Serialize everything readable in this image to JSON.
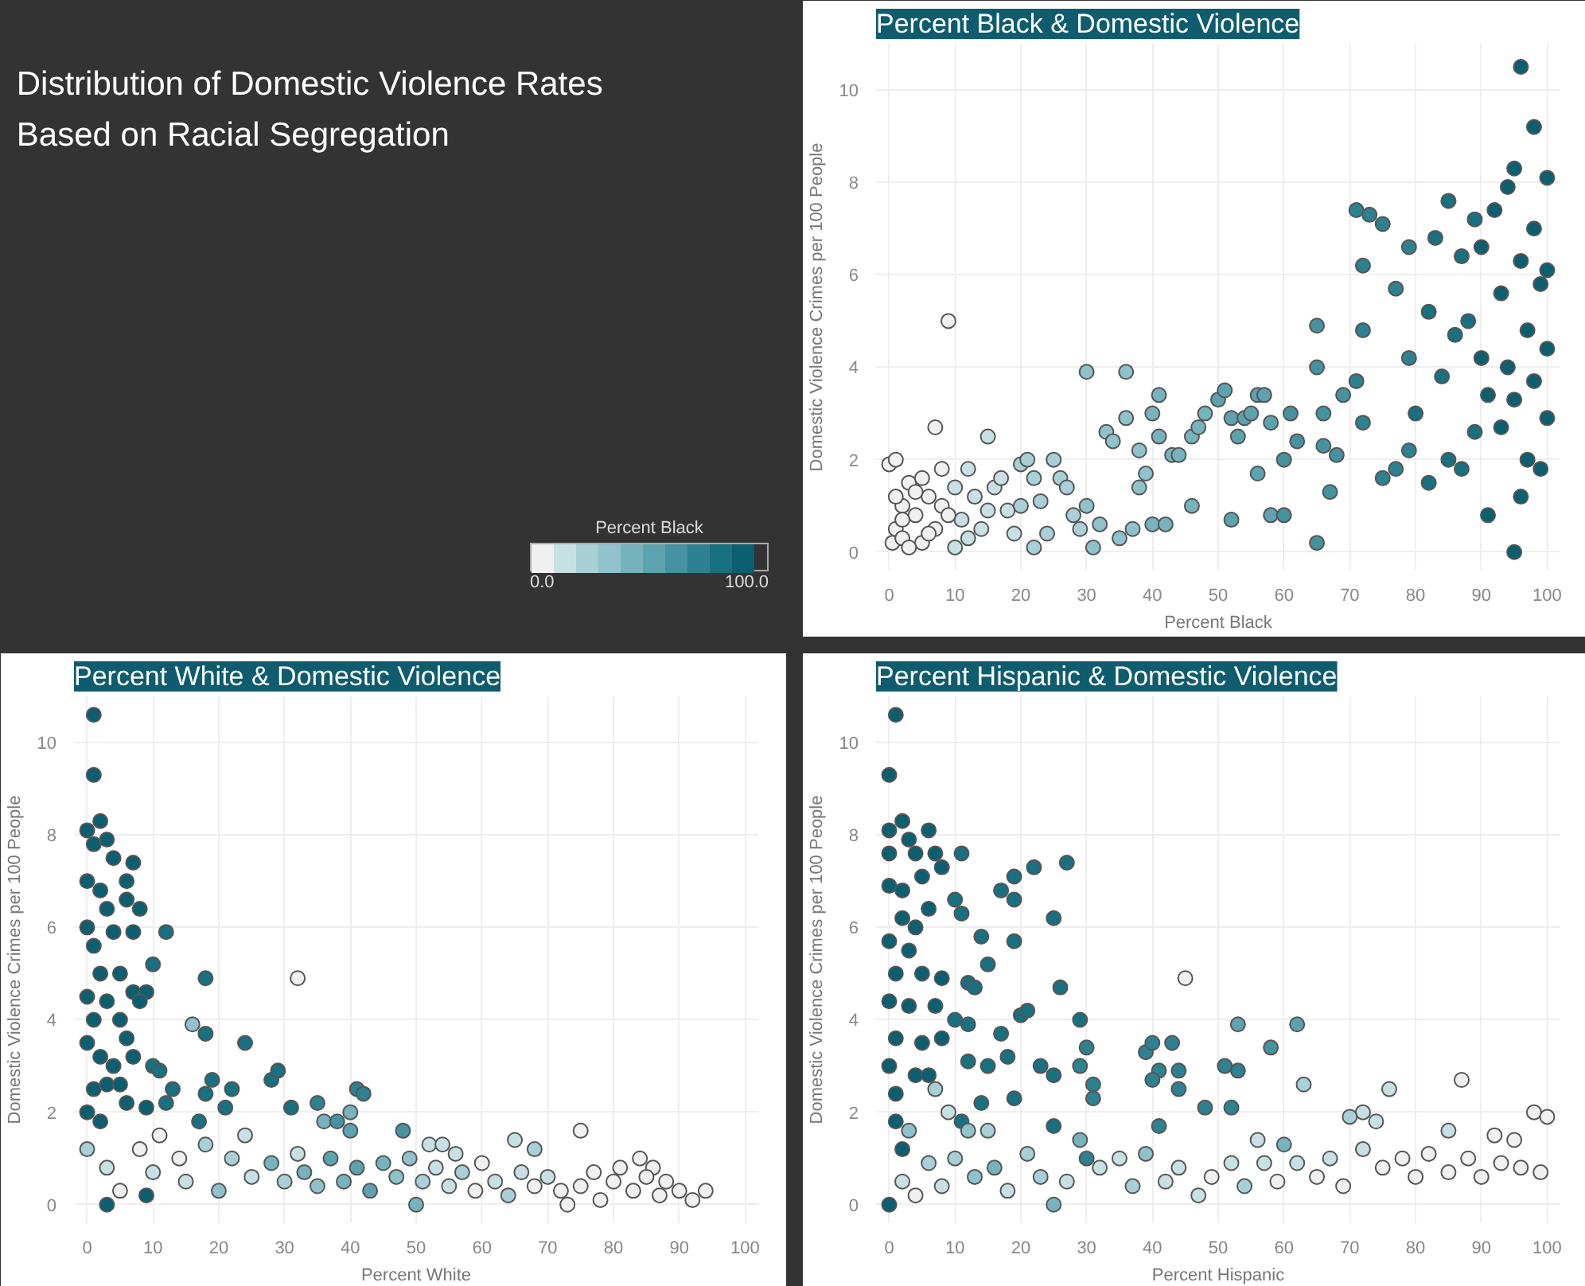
{
  "chart_data": [
    {
      "type": "other",
      "title": "Distribution of Domestic Violence Rates Based on Racial Segregation",
      "colors": [
        "#f0f0f0",
        "#c8e0e4",
        "#a8d0d6",
        "#8fc2ca",
        "#76b3bd",
        "#5da3af",
        "#4592a0",
        "#2e8190",
        "#187080",
        "#0b5f70"
      ],
      "annotations": [
        "Percent Black",
        "0.0",
        "100.0"
      ]
    },
    {
      "type": "scatter",
      "title": "Percent Black & Domestic Violence",
      "xlabel": "Percent Black",
      "ylabel": "Domestic Violence Crimes per 100 People",
      "xlim": [
        -2,
        102
      ],
      "ylim": [
        -0.4,
        11
      ],
      "xticks": [
        0,
        10,
        20,
        30,
        40,
        50,
        60,
        70,
        80,
        90,
        100
      ],
      "yticks": [
        0,
        2,
        4,
        6,
        8,
        10
      ],
      "grid": true,
      "marker": "circle",
      "x": [
        0,
        1,
        0.5,
        1,
        2,
        3,
        2,
        4,
        5,
        5,
        6,
        7,
        7,
        8,
        9,
        8,
        10,
        10,
        11,
        12,
        13,
        14,
        15,
        16,
        17,
        18,
        19,
        20,
        20,
        21,
        22,
        22,
        23,
        24,
        25,
        26,
        27,
        28,
        29,
        30,
        30,
        31,
        32,
        33,
        34,
        35,
        36,
        36,
        37,
        38,
        38,
        39,
        40,
        40,
        41,
        41,
        42,
        43,
        44,
        46,
        46,
        47,
        48,
        50,
        51,
        52,
        52,
        53,
        54,
        55,
        56,
        56,
        57,
        58,
        58,
        60,
        60,
        61,
        62,
        65,
        65,
        65,
        66,
        66,
        67,
        68,
        69,
        71,
        71,
        72,
        72,
        72,
        73,
        75,
        75,
        77,
        77,
        79,
        79,
        79,
        80,
        82,
        82,
        83,
        84,
        85,
        85,
        86,
        87,
        87,
        88,
        89,
        89,
        90,
        90,
        91,
        91,
        92,
        93,
        93,
        94,
        94,
        95,
        95,
        95,
        96,
        96,
        96,
        97,
        97,
        98,
        98,
        98,
        99,
        99,
        100,
        100,
        100,
        100,
        1,
        2,
        3,
        4,
        6,
        9,
        12,
        15
      ],
      "values": [
        1.9,
        2.0,
        0.2,
        0.5,
        1.0,
        1.5,
        0.3,
        0.8,
        1.6,
        0.2,
        1.2,
        0.5,
        2.7,
        1.8,
        5.0,
        1.0,
        0.1,
        1.4,
        0.7,
        1.8,
        1.2,
        0.5,
        2.5,
        1.4,
        1.6,
        0.9,
        0.4,
        1.0,
        1.9,
        2.0,
        1.6,
        0.1,
        1.1,
        0.4,
        2.0,
        1.6,
        1.4,
        0.8,
        0.5,
        3.9,
        1.0,
        0.1,
        0.6,
        2.6,
        2.4,
        0.3,
        3.9,
        2.9,
        0.5,
        2.2,
        1.4,
        1.7,
        3.0,
        0.6,
        3.4,
        2.5,
        0.6,
        2.1,
        2.1,
        1.0,
        2.5,
        2.7,
        3.0,
        3.3,
        3.5,
        2.9,
        0.7,
        2.5,
        2.9,
        3.0,
        3.4,
        1.7,
        3.4,
        0.8,
        2.8,
        2.0,
        0.8,
        3.0,
        2.4,
        4.9,
        4.0,
        0.2,
        3.0,
        2.3,
        1.3,
        2.1,
        3.4,
        3.7,
        7.4,
        6.2,
        4.8,
        2.8,
        7.3,
        7.1,
        1.6,
        5.7,
        1.8,
        6.6,
        4.2,
        2.2,
        3.0,
        5.2,
        1.5,
        6.8,
        3.8,
        7.6,
        2.0,
        4.7,
        6.4,
        1.8,
        5.0,
        7.2,
        2.6,
        4.2,
        6.6,
        3.4,
        0.8,
        7.4,
        5.6,
        2.7,
        7.9,
        4.0,
        8.3,
        0.0,
        3.3,
        6.3,
        10.5,
        1.2,
        4.8,
        2.0,
        9.2,
        7.0,
        3.7,
        5.8,
        1.8,
        8.1,
        4.4,
        2.9,
        6.1,
        1.2,
        0.7,
        0.1,
        1.3,
        0.4,
        0.8,
        0.3,
        0.9
      ],
      "colors": [
        "#f0f0f0",
        "#f0f0f0",
        "#f0f0f0",
        "#f0f0f0",
        "#f0f0f0",
        "#f0f0f0",
        "#f0f0f0",
        "#f0f0f0",
        "#f0f0f0",
        "#f0f0f0",
        "#f0f0f0",
        "#f0f0f0",
        "#f0f0f0",
        "#f0f0f0",
        "#f0f0f0",
        "#f0f0f0",
        "#c8e0e4",
        "#c8e0e4",
        "#c8e0e4",
        "#c8e0e4",
        "#c8e0e4",
        "#c8e0e4",
        "#c8e0e4",
        "#c8e0e4",
        "#c8e0e4",
        "#c8e0e4",
        "#c8e0e4",
        "#a8d0d6",
        "#a8d0d6",
        "#a8d0d6",
        "#a8d0d6",
        "#a8d0d6",
        "#a8d0d6",
        "#a8d0d6",
        "#a8d0d6",
        "#a8d0d6",
        "#a8d0d6",
        "#a8d0d6",
        "#a8d0d6",
        "#8fc2ca",
        "#8fc2ca",
        "#8fc2ca",
        "#8fc2ca",
        "#8fc2ca",
        "#8fc2ca",
        "#8fc2ca",
        "#8fc2ca",
        "#8fc2ca",
        "#8fc2ca",
        "#8fc2ca",
        "#8fc2ca",
        "#8fc2ca",
        "#76b3bd",
        "#76b3bd",
        "#76b3bd",
        "#76b3bd",
        "#76b3bd",
        "#76b3bd",
        "#76b3bd",
        "#76b3bd",
        "#76b3bd",
        "#76b3bd",
        "#76b3bd",
        "#5da3af",
        "#5da3af",
        "#5da3af",
        "#5da3af",
        "#5da3af",
        "#5da3af",
        "#5da3af",
        "#5da3af",
        "#5da3af",
        "#5da3af",
        "#5da3af",
        "#5da3af",
        "#4592a0",
        "#4592a0",
        "#4592a0",
        "#4592a0",
        "#4592a0",
        "#4592a0",
        "#4592a0",
        "#4592a0",
        "#4592a0",
        "#4592a0",
        "#4592a0",
        "#4592a0",
        "#2e8190",
        "#2e8190",
        "#2e8190",
        "#2e8190",
        "#2e8190",
        "#2e8190",
        "#2e8190",
        "#2e8190",
        "#2e8190",
        "#2e8190",
        "#2e8190",
        "#2e8190",
        "#2e8190",
        "#187080",
        "#187080",
        "#187080",
        "#187080",
        "#187080",
        "#187080",
        "#187080",
        "#187080",
        "#187080",
        "#187080",
        "#187080",
        "#187080",
        "#187080",
        "#0b5f70",
        "#0b5f70",
        "#0b5f70",
        "#0b5f70",
        "#0b5f70",
        "#0b5f70",
        "#0b5f70",
        "#0b5f70",
        "#0b5f70",
        "#0b5f70",
        "#0b5f70",
        "#0b5f70",
        "#0b5f70",
        "#0b5f70",
        "#0b5f70",
        "#0b5f70",
        "#0b5f70",
        "#0b5f70",
        "#0b5f70",
        "#0b5f70",
        "#0b5f70",
        "#0b5f70",
        "#0b5f70",
        "#0b5f70",
        "#0b5f70",
        "#0b5f70",
        "#f0f0f0",
        "#f0f0f0",
        "#f0f0f0",
        "#f0f0f0",
        "#f0f0f0",
        "#f0f0f0",
        "#c8e0e4",
        "#c8e0e4"
      ]
    },
    {
      "type": "scatter",
      "title": "Percent White & Domestic Violence",
      "xlabel": "Percent White",
      "ylabel": "Domestic Violence Crimes per 100 People",
      "xlim": [
        -2,
        102
      ],
      "ylim": [
        -0.4,
        11
      ],
      "xticks": [
        0,
        10,
        20,
        30,
        40,
        50,
        60,
        70,
        80,
        90,
        100
      ],
      "yticks": [
        0,
        2,
        4,
        6,
        8,
        10
      ],
      "grid": true,
      "marker": "circle",
      "x": [
        1,
        1,
        2,
        0,
        1,
        3,
        4,
        7,
        0,
        2,
        6,
        3,
        6,
        8,
        0,
        1,
        4,
        7,
        12,
        10,
        2,
        5,
        0,
        3,
        7,
        9,
        8,
        1,
        5,
        6,
        0,
        2,
        4,
        7,
        10,
        11,
        1,
        3,
        5,
        13,
        0,
        2,
        6,
        9,
        12,
        3,
        9,
        16,
        18,
        18,
        17,
        19,
        18,
        22,
        21,
        24,
        28,
        29,
        32,
        31,
        35,
        36,
        38,
        40,
        41,
        42,
        40,
        48,
        52,
        54,
        56,
        65,
        68,
        75,
        84,
        86,
        94,
        0,
        3,
        5,
        8,
        10,
        11,
        14,
        15,
        18,
        20,
        22,
        24,
        25,
        28,
        30,
        32,
        33,
        35,
        37,
        39,
        41,
        43,
        45,
        47,
        49,
        50,
        51,
        53,
        55,
        57,
        59,
        60,
        62,
        64,
        66,
        68,
        70,
        72,
        73,
        75,
        77,
        78,
        80,
        81,
        83,
        85,
        87,
        88,
        90,
        92
      ],
      "values": [
        10.6,
        9.3,
        8.3,
        8.1,
        7.8,
        7.9,
        7.5,
        7.4,
        7.0,
        6.8,
        7.0,
        6.4,
        6.6,
        6.4,
        6.0,
        5.6,
        5.9,
        5.9,
        5.9,
        5.2,
        5.0,
        5.0,
        4.5,
        4.4,
        4.6,
        4.6,
        4.4,
        4.0,
        4.0,
        3.6,
        3.5,
        3.2,
        3.0,
        3.2,
        3.0,
        2.9,
        2.5,
        2.6,
        2.6,
        2.5,
        2.0,
        1.8,
        2.2,
        2.1,
        2.2,
        0.0,
        0.2,
        3.9,
        4.9,
        3.7,
        1.8,
        2.7,
        2.4,
        2.5,
        2.1,
        3.5,
        2.7,
        2.9,
        4.9,
        2.1,
        2.2,
        1.8,
        1.8,
        2.0,
        2.5,
        2.4,
        1.6,
        1.6,
        1.3,
        1.3,
        1.1,
        1.4,
        1.2,
        1.6,
        1.0,
        0.8,
        0.3,
        1.2,
        0.8,
        0.3,
        1.2,
        0.7,
        1.5,
        1.0,
        0.5,
        1.3,
        0.3,
        1.0,
        1.5,
        0.6,
        0.9,
        0.5,
        1.1,
        0.7,
        0.4,
        1.0,
        0.5,
        0.8,
        0.3,
        0.9,
        0.6,
        1.0,
        0.0,
        0.5,
        0.8,
        0.4,
        0.7,
        0.3,
        0.9,
        0.5,
        0.2,
        0.7,
        0.4,
        0.6,
        0.3,
        0.0,
        0.4,
        0.7,
        0.1,
        0.5,
        0.8,
        0.3,
        0.6,
        0.2,
        0.5,
        0.3,
        0.1
      ],
      "colors": [
        "#0b5f70",
        "#0b5f70",
        "#0b5f70",
        "#0b5f70",
        "#0b5f70",
        "#0b5f70",
        "#0b5f70",
        "#0b5f70",
        "#0b5f70",
        "#0b5f70",
        "#0b5f70",
        "#0b5f70",
        "#0b5f70",
        "#0b5f70",
        "#0b5f70",
        "#0b5f70",
        "#0b5f70",
        "#0b5f70",
        "#187080",
        "#187080",
        "#0b5f70",
        "#0b5f70",
        "#0b5f70",
        "#0b5f70",
        "#0b5f70",
        "#0b5f70",
        "#0b5f70",
        "#0b5f70",
        "#0b5f70",
        "#0b5f70",
        "#0b5f70",
        "#0b5f70",
        "#0b5f70",
        "#0b5f70",
        "#187080",
        "#187080",
        "#0b5f70",
        "#0b5f70",
        "#0b5f70",
        "#187080",
        "#0b5f70",
        "#0b5f70",
        "#0b5f70",
        "#0b5f70",
        "#187080",
        "#0b5f70",
        "#0b5f70",
        "#8fc2ca",
        "#187080",
        "#187080",
        "#187080",
        "#187080",
        "#187080",
        "#187080",
        "#187080",
        "#187080",
        "#187080",
        "#187080",
        "#f0f0f0",
        "#187080",
        "#2e8190",
        "#76b3bd",
        "#4592a0",
        "#76b3bd",
        "#2e8190",
        "#2e8190",
        "#5da3af",
        "#4592a0",
        "#c8e0e4",
        "#c8e0e4",
        "#c8e0e4",
        "#c8e0e4",
        "#a8d0d6",
        "#f0f0f0",
        "#f0f0f0",
        "#f0f0f0",
        "#f0f0f0",
        "#a8d0d6",
        "#c8e0e4",
        "#f0f0f0",
        "#f0f0f0",
        "#c8e0e4",
        "#f0f0f0",
        "#f0f0f0",
        "#c8e0e4",
        "#a8d0d6",
        "#8fc2ca",
        "#a8d0d6",
        "#c8e0e4",
        "#c8e0e4",
        "#76b3bd",
        "#a8d0d6",
        "#c8e0e4",
        "#76b3bd",
        "#8fc2ca",
        "#5da3af",
        "#76b3bd",
        "#5da3af",
        "#5da3af",
        "#76b3bd",
        "#8fc2ca",
        "#8fc2ca",
        "#76b3bd",
        "#a8d0d6",
        "#c8e0e4",
        "#c8e0e4",
        "#a8d0d6",
        "#f0f0f0",
        "#f0f0f0",
        "#c8e0e4",
        "#a8d0d6",
        "#c8e0e4",
        "#f0f0f0",
        "#c8e0e4",
        "#f0f0f0",
        "#f0f0f0",
        "#f0f0f0",
        "#f0f0f0",
        "#f0f0f0",
        "#f0f0f0",
        "#f0f0f0",
        "#f0f0f0",
        "#f0f0f0",
        "#f0f0f0",
        "#f0f0f0",
        "#f0f0f0",
        "#f0f0f0"
      ]
    },
    {
      "type": "scatter",
      "title": "Percent Hispanic & Domestic Violence",
      "xlabel": "Percent Hispanic",
      "ylabel": "Domestic Violence Crimes per 100 People",
      "xlim": [
        -2,
        102
      ],
      "ylim": [
        -0.4,
        11
      ],
      "xticks": [
        0,
        10,
        20,
        30,
        40,
        50,
        60,
        70,
        80,
        90,
        100
      ],
      "yticks": [
        0,
        2,
        4,
        6,
        8,
        10
      ],
      "grid": true,
      "marker": "circle",
      "x": [
        1,
        0,
        2,
        0,
        3,
        6,
        0,
        4,
        7,
        8,
        5,
        0,
        2,
        11,
        17,
        19,
        19,
        22,
        27,
        10,
        11,
        25,
        2,
        4,
        6,
        0,
        3,
        14,
        19,
        15,
        1,
        5,
        8,
        12,
        13,
        26,
        0,
        3,
        7,
        10,
        12,
        20,
        21,
        29,
        1,
        5,
        8,
        17,
        30,
        39,
        40,
        43,
        0,
        4,
        12,
        15,
        23,
        25,
        29,
        41,
        44,
        51,
        53,
        58,
        62,
        53,
        1,
        6,
        14,
        18,
        19,
        31,
        31,
        40,
        44,
        48,
        52,
        1,
        11,
        25,
        41,
        2,
        0,
        30,
        45,
        63,
        76,
        87,
        98,
        72,
        74,
        70,
        56,
        60,
        85,
        92,
        95,
        100,
        3,
        7,
        9,
        12,
        15,
        2,
        4,
        6,
        8,
        10,
        13,
        16,
        18,
        21,
        23,
        25,
        27,
        29,
        32,
        35,
        37,
        39,
        42,
        44,
        47,
        49,
        52,
        54,
        57,
        59,
        62,
        65,
        67,
        69,
        72,
        75,
        78,
        80,
        82,
        85,
        88,
        90,
        93,
        96,
        99
      ],
      "values": [
        10.6,
        9.3,
        8.3,
        8.1,
        7.9,
        8.1,
        7.6,
        7.6,
        7.6,
        7.3,
        7.1,
        6.9,
        6.8,
        7.6,
        6.8,
        7.1,
        6.6,
        7.3,
        7.4,
        6.6,
        6.3,
        6.2,
        6.2,
        6.0,
        6.4,
        5.7,
        5.5,
        5.8,
        5.7,
        5.2,
        5.0,
        5.0,
        4.9,
        4.8,
        4.7,
        4.7,
        4.4,
        4.3,
        4.3,
        4.0,
        3.9,
        4.1,
        4.2,
        4.0,
        3.6,
        3.5,
        3.6,
        3.7,
        3.4,
        3.3,
        3.5,
        3.5,
        3.0,
        2.8,
        3.1,
        3.0,
        3.0,
        2.8,
        3.0,
        2.9,
        2.9,
        3.0,
        2.9,
        3.4,
        3.9,
        3.9,
        2.4,
        2.8,
        2.2,
        3.2,
        2.3,
        2.6,
        2.3,
        2.7,
        2.5,
        2.1,
        2.1,
        1.8,
        1.8,
        1.7,
        1.7,
        1.2,
        0.0,
        1.0,
        4.9,
        2.6,
        2.5,
        2.7,
        2.0,
        2.0,
        1.8,
        1.9,
        1.4,
        1.3,
        1.6,
        1.5,
        1.4,
        1.9,
        1.6,
        2.5,
        2.0,
        1.6,
        1.6,
        0.5,
        0.2,
        0.9,
        0.4,
        1.0,
        0.6,
        0.8,
        0.3,
        1.1,
        0.6,
        0.0,
        0.5,
        1.4,
        0.8,
        1.0,
        0.4,
        1.1,
        0.5,
        0.8,
        0.2,
        0.6,
        0.9,
        0.4,
        0.9,
        0.5,
        0.9,
        0.6,
        1.0,
        0.4,
        1.2,
        0.8,
        1.0,
        0.6,
        1.1,
        0.7,
        1.0,
        0.6,
        0.9,
        0.8,
        0.7
      ],
      "colors": [
        "#0b5f70",
        "#0b5f70",
        "#0b5f70",
        "#0b5f70",
        "#0b5f70",
        "#0b5f70",
        "#0b5f70",
        "#0b5f70",
        "#0b5f70",
        "#0b5f70",
        "#0b5f70",
        "#0b5f70",
        "#0b5f70",
        "#187080",
        "#187080",
        "#187080",
        "#187080",
        "#187080",
        "#187080",
        "#187080",
        "#187080",
        "#187080",
        "#0b5f70",
        "#0b5f70",
        "#0b5f70",
        "#0b5f70",
        "#0b5f70",
        "#187080",
        "#187080",
        "#187080",
        "#0b5f70",
        "#0b5f70",
        "#0b5f70",
        "#187080",
        "#187080",
        "#187080",
        "#0b5f70",
        "#0b5f70",
        "#0b5f70",
        "#187080",
        "#187080",
        "#187080",
        "#187080",
        "#187080",
        "#0b5f70",
        "#0b5f70",
        "#0b5f70",
        "#187080",
        "#2e8190",
        "#2e8190",
        "#2e8190",
        "#2e8190",
        "#0b5f70",
        "#0b5f70",
        "#187080",
        "#187080",
        "#187080",
        "#187080",
        "#2e8190",
        "#2e8190",
        "#2e8190",
        "#2e8190",
        "#2e8190",
        "#4592a0",
        "#5da3af",
        "#5da3af",
        "#0b5f70",
        "#0b5f70",
        "#187080",
        "#187080",
        "#187080",
        "#2e8190",
        "#2e8190",
        "#2e8190",
        "#2e8190",
        "#2e8190",
        "#2e8190",
        "#0b5f70",
        "#187080",
        "#187080",
        "#2e8190",
        "#0b5f70",
        "#0b5f70",
        "#2e8190",
        "#f0f0f0",
        "#a8d0d6",
        "#c8e0e4",
        "#f0f0f0",
        "#f0f0f0",
        "#c8e0e4",
        "#c8e0e4",
        "#a8d0d6",
        "#c8e0e4",
        "#76b3bd",
        "#c8e0e4",
        "#f0f0f0",
        "#f0f0f0",
        "#f0f0f0",
        "#8fc2ca",
        "#a8d0d6",
        "#c8e0e4",
        "#8fc2ca",
        "#a8d0d6",
        "#c8e0e4",
        "#f0f0f0",
        "#a8d0d6",
        "#c8e0e4",
        "#a8d0d6",
        "#8fc2ca",
        "#76b3bd",
        "#c8e0e4",
        "#a8d0d6",
        "#a8d0d6",
        "#76b3bd",
        "#c8e0e4",
        "#76b3bd",
        "#c8e0e4",
        "#c8e0e4",
        "#a8d0d6",
        "#8fc2ca",
        "#c8e0e4",
        "#c8e0e4",
        "#c8e0e4",
        "#f0f0f0",
        "#c8e0e4",
        "#a8d0d6",
        "#c8e0e4",
        "#f0f0f0",
        "#c8e0e4",
        "#f0f0f0",
        "#c8e0e4",
        "#f0f0f0",
        "#c8e0e4",
        "#f0f0f0",
        "#f0f0f0",
        "#f0f0f0",
        "#f0f0f0",
        "#f0f0f0",
        "#f0f0f0",
        "#f0f0f0",
        "#f0f0f0",
        "#f0f0f0",
        "#f0f0f0"
      ]
    }
  ]
}
